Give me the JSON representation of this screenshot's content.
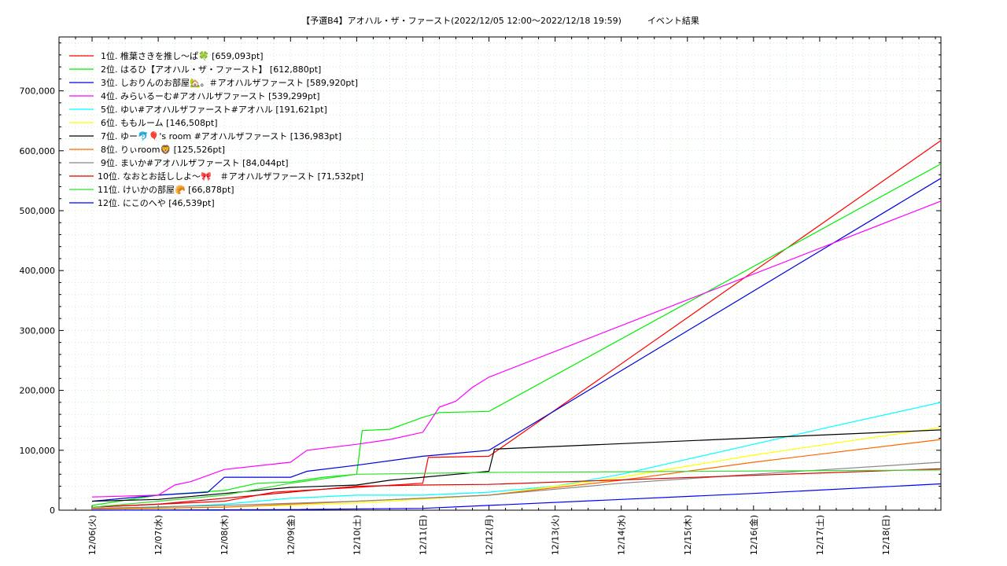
{
  "chart_data": {
    "type": "line",
    "title": "【予選B4】アオハル・ザ・ファースト(2022/12/05 12:00〜2022/12/18 19:59)　　　イベント結果",
    "xlabel": "",
    "ylabel": "",
    "ylim": [
      0,
      790000
    ],
    "xlim": [
      "2022-12-05 12:00",
      "2022-12-18 19:59"
    ],
    "x_ticks": [
      "12/06(火)",
      "12/07(水)",
      "12/08(木)",
      "12/09(金)",
      "12/10(土)",
      "12/11(日)",
      "12/12(月)",
      "12/13(火)",
      "12/14(水)",
      "12/15(木)",
      "12/16(金)",
      "12/17(土)",
      "12/18(日)"
    ],
    "y_ticks": [
      "0",
      "100,000",
      "200,000",
      "300,000",
      "400,000",
      "500,000",
      "600,000",
      "700,000"
    ],
    "grid": true,
    "legend_position": "top-left",
    "series": [
      {
        "name": "1位. 椎葉さきを推し〜ぱ🍀 [659,093pt]",
        "color": "#ff0000",
        "points": [
          [
            "12/06 00:00",
            5000
          ],
          [
            "12/07 00:00",
            10000
          ],
          [
            "12/08 00:00",
            15000
          ],
          [
            "12/08 18:00",
            30000
          ],
          [
            "12/09 12:00",
            35000
          ],
          [
            "12/10 00:00",
            38000
          ],
          [
            "12/11 00:00",
            45000
          ],
          [
            "12/11 02:00",
            88000
          ],
          [
            "12/12 00:00",
            90000
          ],
          [
            "12/18 19:59",
            617000
          ]
        ]
      },
      {
        "name": "2位. はるひ【アオハル・ザ・ファースト】 [612,880pt]",
        "color": "#00ee00",
        "points": [
          [
            "12/06 00:00",
            8000
          ],
          [
            "12/07 00:00",
            25000
          ],
          [
            "12/08 00:00",
            33000
          ],
          [
            "12/08 12:00",
            45000
          ],
          [
            "12/09 00:00",
            47000
          ],
          [
            "12/09 12:00",
            55000
          ],
          [
            "12/10 00:00",
            60000
          ],
          [
            "12/10 02:00",
            133000
          ],
          [
            "12/10 12:00",
            135000
          ],
          [
            "12/11 00:00",
            155000
          ],
          [
            "12/11 06:00",
            163000
          ],
          [
            "12/12 00:00",
            165000
          ],
          [
            "12/18 19:59",
            578000
          ]
        ]
      },
      {
        "name": "3位. しおりんのお部屋🏡。＃アオハルザファースト [589,920pt]",
        "color": "#0000dd",
        "points": [
          [
            "12/06 00:00",
            15000
          ],
          [
            "12/07 00:00",
            25000
          ],
          [
            "12/07 18:00",
            30000
          ],
          [
            "12/08 00:00",
            55000
          ],
          [
            "12/09 00:00",
            55000
          ],
          [
            "12/09 06:00",
            65000
          ],
          [
            "12/10 00:00",
            75000
          ],
          [
            "12/11 00:00",
            90000
          ],
          [
            "12/11 12:00",
            95000
          ],
          [
            "12/12 00:00",
            100000
          ],
          [
            "12/18 19:59",
            554000
          ]
        ]
      },
      {
        "name": "4位. みらいるーむ#アオハルザファースト [539,299pt]",
        "color": "#ff00ff",
        "points": [
          [
            "12/06 00:00",
            22000
          ],
          [
            "12/07 00:00",
            25000
          ],
          [
            "12/07 06:00",
            42000
          ],
          [
            "12/07 12:00",
            48000
          ],
          [
            "12/08 00:00",
            68000
          ],
          [
            "12/09 00:00",
            80000
          ],
          [
            "12/09 06:00",
            100000
          ],
          [
            "12/10 00:00",
            110000
          ],
          [
            "12/10 12:00",
            118000
          ],
          [
            "12/11 00:00",
            130000
          ],
          [
            "12/11 06:00",
            172000
          ],
          [
            "12/11 12:00",
            182000
          ],
          [
            "12/11 18:00",
            205000
          ],
          [
            "12/12 00:00",
            222000
          ],
          [
            "12/18 19:59",
            516000
          ]
        ]
      },
      {
        "name": "5位. ゆい#アオハルザファースト#アオハル [191,621pt]",
        "color": "#00ffff",
        "points": [
          [
            "12/06 00:00",
            2000
          ],
          [
            "12/07 00:00",
            5000
          ],
          [
            "12/08 00:00",
            10000
          ],
          [
            "12/09 00:00",
            20000
          ],
          [
            "12/10 00:00",
            25000
          ],
          [
            "12/11 00:00",
            25000
          ],
          [
            "12/12 00:00",
            30000
          ],
          [
            "12/13 00:00",
            40000
          ],
          [
            "12/14 00:00",
            60000
          ],
          [
            "12/15 00:00",
            85000
          ],
          [
            "12/16 00:00",
            110000
          ],
          [
            "12/17 00:00",
            135000
          ],
          [
            "12/18 19:59",
            180000
          ]
        ]
      },
      {
        "name": "6位. ももルーム [146,508pt]",
        "color": "#ffff00",
        "points": [
          [
            "12/06 00:00",
            1000
          ],
          [
            "12/08 00:00",
            5000
          ],
          [
            "12/10 00:00",
            12000
          ],
          [
            "12/12 00:00",
            25000
          ],
          [
            "12/14 00:00",
            55000
          ],
          [
            "12/16 00:00",
            92000
          ],
          [
            "12/18 19:59",
            138000
          ]
        ]
      },
      {
        "name": "7位. ゆー🐬🎈's room #アオハルザファースト [136,983pt]",
        "color": "#000000",
        "points": [
          [
            "12/06 00:00",
            15000
          ],
          [
            "12/07 00:00",
            18000
          ],
          [
            "12/08 00:00",
            28000
          ],
          [
            "12/09 00:00",
            38000
          ],
          [
            "12/10 00:00",
            42000
          ],
          [
            "12/10 12:00",
            50000
          ],
          [
            "12/11 00:00",
            55000
          ],
          [
            "12/11 12:00",
            60000
          ],
          [
            "12/12 00:00",
            65000
          ],
          [
            "12/12 02:00",
            102000
          ],
          [
            "12/18 19:59",
            134000
          ]
        ]
      },
      {
        "name": "8位. りぃroom🦁 [125,526pt]",
        "color": "#ff6600",
        "points": [
          [
            "12/06 00:00",
            2000
          ],
          [
            "12/08 00:00",
            5000
          ],
          [
            "12/10 00:00",
            15000
          ],
          [
            "12/12 00:00",
            25000
          ],
          [
            "12/14 00:00",
            50000
          ],
          [
            "12/16 00:00",
            80000
          ],
          [
            "12/18 19:59",
            118000
          ]
        ]
      },
      {
        "name": "9位. まいか#アオハルザファースト [84,044pt]",
        "color": "#888888",
        "points": [
          [
            "12/06 00:00",
            3000
          ],
          [
            "12/08 00:00",
            8000
          ],
          [
            "12/10 00:00",
            15000
          ],
          [
            "12/12 00:00",
            25000
          ],
          [
            "12/14 00:00",
            45000
          ],
          [
            "12/16 00:00",
            60000
          ],
          [
            "12/18 19:59",
            80000
          ]
        ]
      },
      {
        "name": "10位. なおとお話ししよ〜🎀　＃アオハルザファースト [71,532pt]",
        "color": "#dd0000",
        "points": [
          [
            "12/06 00:00",
            5000
          ],
          [
            "12/07 00:00",
            10000
          ],
          [
            "12/08 00:00",
            20000
          ],
          [
            "12/09 00:00",
            30000
          ],
          [
            "12/10 00:00",
            40000
          ],
          [
            "12/11 00:00",
            42000
          ],
          [
            "12/12 00:00",
            43000
          ],
          [
            "12/18 19:59",
            69000
          ]
        ]
      },
      {
        "name": "11位. けいかの部屋🥐 [66,878pt]",
        "color": "#33dd33",
        "points": [
          [
            "12/06 00:00",
            5000
          ],
          [
            "12/07 00:00",
            15000
          ],
          [
            "12/08 00:00",
            25000
          ],
          [
            "12/09 00:00",
            45000
          ],
          [
            "12/10 00:00",
            60000
          ],
          [
            "12/12 00:00",
            63000
          ],
          [
            "12/18 19:59",
            67000
          ]
        ]
      },
      {
        "name": "12位. にこのへや [46,539pt]",
        "color": "#0000ff",
        "points": [
          [
            "12/06 00:00",
            0
          ],
          [
            "12/09 00:00",
            1000
          ],
          [
            "12/11 00:00",
            3000
          ],
          [
            "12/12 00:00",
            8000
          ],
          [
            "12/14 00:00",
            18000
          ],
          [
            "12/16 00:00",
            28000
          ],
          [
            "12/18 19:59",
            44000
          ]
        ]
      }
    ]
  }
}
